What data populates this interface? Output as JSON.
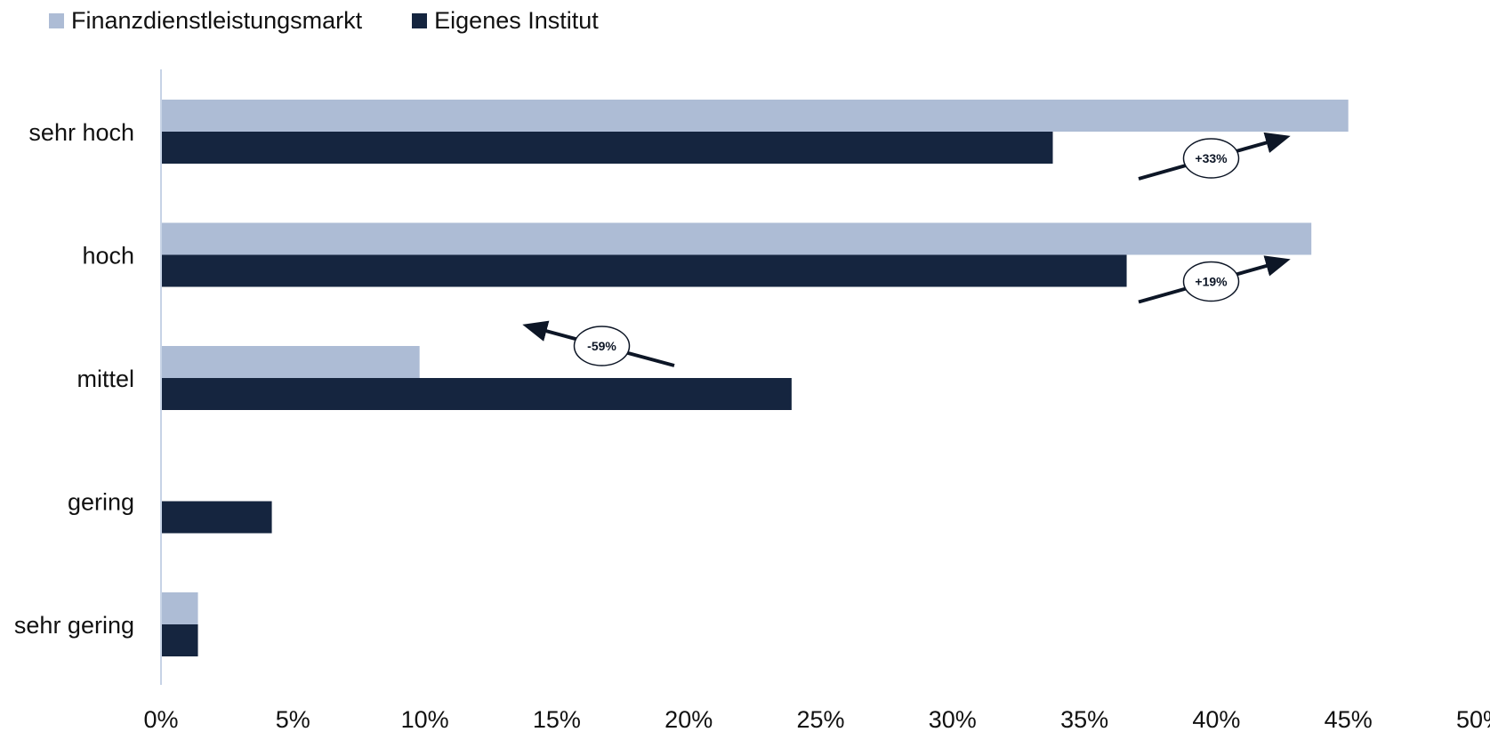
{
  "chart_data": {
    "type": "bar",
    "orientation": "horizontal",
    "categories": [
      "sehr hoch",
      "hoch",
      "mittel",
      "gering",
      "sehr gering"
    ],
    "series": [
      {
        "name": "Finanzdienstleistungsmarkt",
        "color": "#adbcd5",
        "values": [
          45.0,
          43.6,
          9.8,
          0,
          1.4
        ]
      },
      {
        "name": "Eigenes Institut",
        "color": "#15253f",
        "values": [
          33.8,
          36.6,
          23.9,
          4.2,
          1.4
        ]
      }
    ],
    "xlim": [
      0,
      50
    ],
    "x_ticks": [
      0,
      5,
      10,
      15,
      20,
      25,
      30,
      35,
      40,
      45,
      50
    ],
    "x_tick_labels": [
      "0%",
      "5%",
      "10%",
      "15%",
      "20%",
      "25%",
      "30%",
      "35%",
      "40%",
      "45%",
      "50%"
    ],
    "legend_position": "top-left",
    "grid": false,
    "annotations": [
      {
        "category": "sehr hoch",
        "label": "+33%",
        "direction": "up-right"
      },
      {
        "category": "hoch",
        "label": "+19%",
        "direction": "up-right"
      },
      {
        "category": "mittel",
        "label": "-59%",
        "direction": "up-left"
      }
    ]
  }
}
